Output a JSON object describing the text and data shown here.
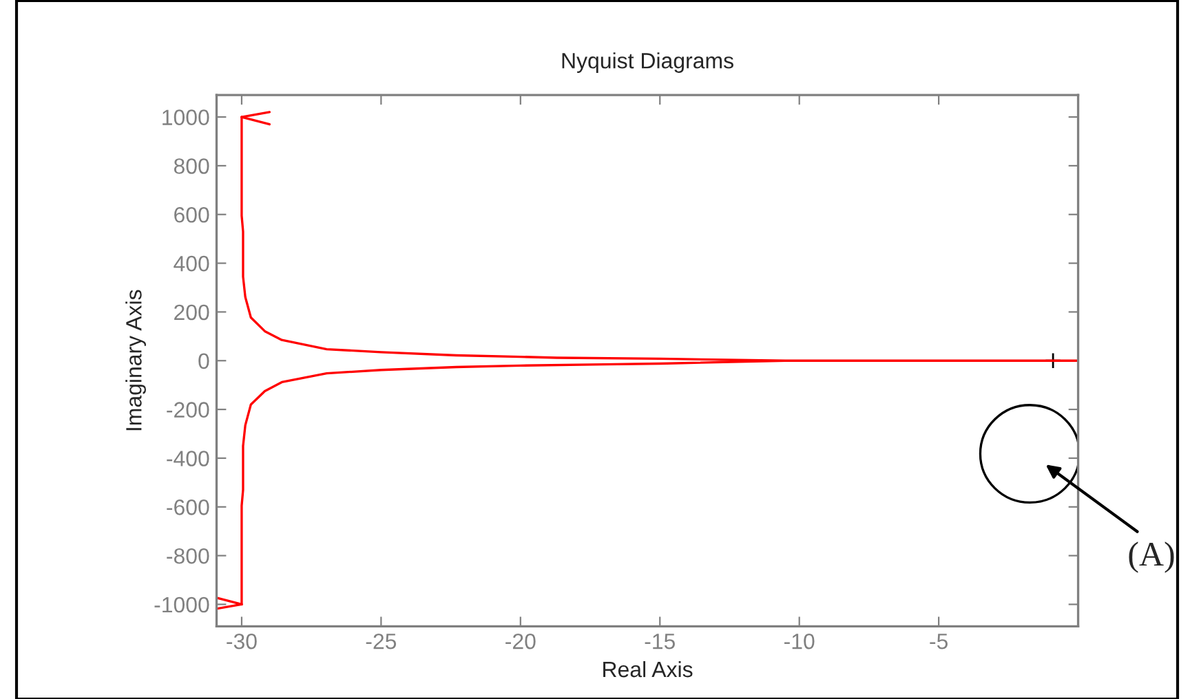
{
  "chart_data": {
    "type": "line",
    "title": "Nyquist Diagrams",
    "xlabel": "Real Axis",
    "ylabel": "Imaginary Axis",
    "series": [
      {
        "color": "#ff0000",
        "x": [
          -30,
          -30,
          -29.95,
          -29.95,
          -29.87,
          -29.67,
          -29.17,
          -28.56,
          -26.95,
          -25,
          -22.3,
          -20,
          -18.7,
          -15,
          -10.5,
          -5,
          0,
          -5,
          -10.5,
          -15,
          -17,
          -20,
          -22.3,
          -25,
          -26.95,
          -28.56,
          -29.17,
          -29.67,
          -29.87,
          -29.95,
          -29.95,
          -30,
          -30
        ],
        "values": [
          1000,
          595,
          530,
          345,
          261,
          177,
          121,
          85,
          47,
          35,
          22,
          16,
          12,
          8,
          0,
          0,
          0,
          0,
          0,
          -12,
          -15,
          -20,
          -26,
          -38,
          -52,
          -88,
          -125,
          -180,
          -265,
          -350,
          -530,
          -595,
          -1000
        ]
      },
      {
        "type": "scatter",
        "color": "#000000",
        "marker": "cross",
        "x": [
          -0.9
        ],
        "values": [
          0
        ]
      }
    ],
    "xlim": [
      -30.9,
      0
    ],
    "ylim": [
      -1090,
      1090
    ],
    "xticks": [
      -30,
      -25,
      -20,
      -15,
      -10,
      -5
    ],
    "yticks": [
      -1000,
      -800,
      -600,
      -400,
      -200,
      0,
      200,
      400,
      600,
      800,
      1000
    ],
    "grid": false,
    "legend": false,
    "marker": "none",
    "line_style": "solid",
    "annotations": [
      "(A)"
    ]
  }
}
